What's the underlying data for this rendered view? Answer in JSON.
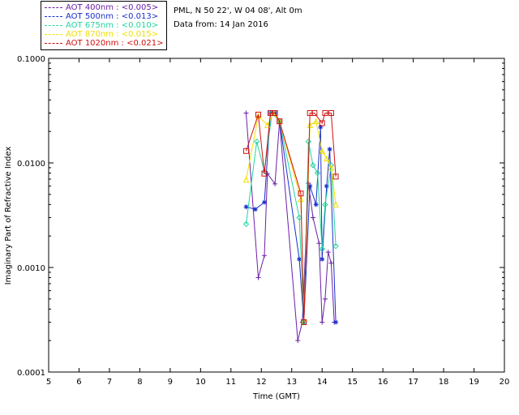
{
  "info": {
    "location": "PML, N 50 22', W 04 08', Alt 0m",
    "date_line": "Data from: 14 Jan 2016"
  },
  "legend": [
    {
      "label": "AOT  400nm : <0.005>",
      "color": "#6a1fa8"
    },
    {
      "label": "AOT  500nm : <0.013>",
      "color": "#1a2fcc"
    },
    {
      "label": "AOT  675nm : <0.010>",
      "color": "#22d4a0"
    },
    {
      "label": "AOT  870nm : <0.015>",
      "color": "#f0e000"
    },
    {
      "label": "AOT 1020nm : <0.021>",
      "color": "#d01010"
    }
  ],
  "chart_data": {
    "type": "scatter",
    "xlabel": "Time (GMT)",
    "ylabel": "Imaginary Part of Refractive Index",
    "xlim": [
      5,
      20
    ],
    "ylim": [
      0.0001,
      0.1
    ],
    "yscale": "log",
    "x_ticks": [
      "5",
      "6",
      "7",
      "8",
      "9",
      "10",
      "11",
      "12",
      "13",
      "14",
      "15",
      "16",
      "17",
      "18",
      "19",
      "20"
    ],
    "y_ticks": [
      {
        "value": 0.0001,
        "label": "0.0001"
      },
      {
        "value": 0.001,
        "label": "0.0010"
      },
      {
        "value": 0.01,
        "label": "0.0100"
      },
      {
        "value": 0.1,
        "label": "0.1000"
      }
    ],
    "series": [
      {
        "name": "AOT  400nm : <0.005>",
        "color": "#6a1fa8",
        "marker": "plus",
        "points": [
          [
            11.5,
            0.03
          ],
          [
            11.9,
            0.0008
          ],
          [
            12.1,
            0.0013
          ],
          [
            12.2,
            0.0079
          ],
          [
            12.45,
            0.0063
          ],
          [
            12.6,
            0.025
          ],
          [
            13.2,
            0.0002
          ],
          [
            13.35,
            0.0003
          ],
          [
            13.55,
            0.0064
          ],
          [
            13.7,
            0.003
          ],
          [
            13.9,
            0.0017
          ],
          [
            14.0,
            0.0003
          ],
          [
            14.1,
            0.0005
          ],
          [
            14.2,
            0.0014
          ],
          [
            14.3,
            0.0011
          ],
          [
            14.4,
            0.0003
          ]
        ]
      },
      {
        "name": "AOT  500nm : <0.013>",
        "color": "#1a2fcc",
        "marker": "star",
        "points": [
          [
            11.5,
            0.0038
          ],
          [
            11.8,
            0.0036
          ],
          [
            12.1,
            0.0042
          ],
          [
            12.3,
            0.03
          ],
          [
            12.45,
            0.03
          ],
          [
            12.6,
            0.025
          ],
          [
            13.25,
            0.0012
          ],
          [
            13.4,
            0.0003
          ],
          [
            13.6,
            0.006
          ],
          [
            13.8,
            0.004
          ],
          [
            13.95,
            0.022
          ],
          [
            14.0,
            0.0012
          ],
          [
            14.15,
            0.006
          ],
          [
            14.25,
            0.0135
          ],
          [
            14.45,
            0.0003
          ]
        ]
      },
      {
        "name": "AOT  675nm : <0.010>",
        "color": "#22d4a0",
        "marker": "diamond",
        "points": [
          [
            11.5,
            0.0026
          ],
          [
            11.85,
            0.016
          ],
          [
            12.1,
            0.0083
          ],
          [
            12.35,
            0.03
          ],
          [
            12.6,
            0.025
          ],
          [
            13.25,
            0.003
          ],
          [
            13.4,
            0.0003
          ],
          [
            13.55,
            0.016
          ],
          [
            13.7,
            0.0095
          ],
          [
            13.85,
            0.008
          ],
          [
            14.0,
            0.0015
          ],
          [
            14.1,
            0.004
          ],
          [
            14.3,
            0.0095
          ],
          [
            14.45,
            0.0016
          ]
        ]
      },
      {
        "name": "AOT  870nm : <0.015>",
        "color": "#f0e000",
        "marker": "triangle",
        "points": [
          [
            11.5,
            0.0069
          ],
          [
            11.9,
            0.028
          ],
          [
            12.2,
            0.023
          ],
          [
            12.4,
            0.03
          ],
          [
            12.6,
            0.025
          ],
          [
            13.3,
            0.0045
          ],
          [
            13.4,
            0.0003
          ],
          [
            13.6,
            0.023
          ],
          [
            13.8,
            0.025
          ],
          [
            14.0,
            0.013
          ],
          [
            14.15,
            0.011
          ],
          [
            14.3,
            0.009
          ],
          [
            14.45,
            0.004
          ]
        ]
      },
      {
        "name": "AOT 1020nm : <0.021>",
        "color": "#d01010",
        "marker": "square",
        "points": [
          [
            11.5,
            0.013
          ],
          [
            11.9,
            0.029
          ],
          [
            12.1,
            0.0079
          ],
          [
            12.3,
            0.03
          ],
          [
            12.45,
            0.03
          ],
          [
            12.6,
            0.025
          ],
          [
            13.3,
            0.0051
          ],
          [
            13.4,
            0.0003
          ],
          [
            13.6,
            0.03
          ],
          [
            13.75,
            0.03
          ],
          [
            14.0,
            0.024
          ],
          [
            14.1,
            0.03
          ],
          [
            14.3,
            0.03
          ],
          [
            14.45,
            0.0074
          ]
        ]
      }
    ]
  }
}
